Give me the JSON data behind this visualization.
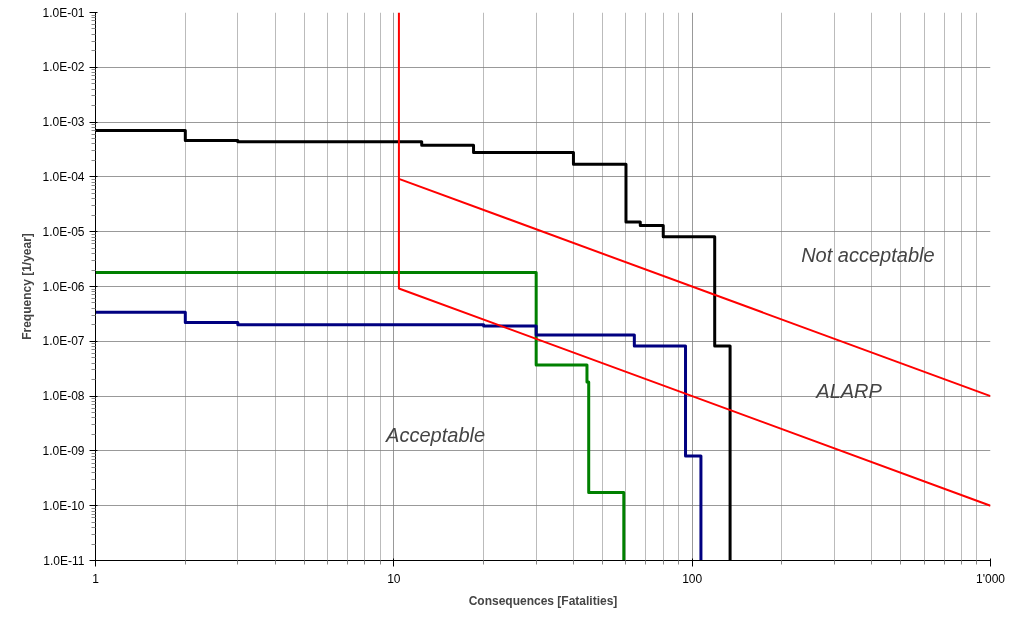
{
  "chart_data": {
    "type": "step",
    "xlabel": "Consequences [Fatalities]",
    "ylabel": "Frequency [1/year]",
    "log": "xy",
    "grid": true,
    "xlim": [
      1,
      1000
    ],
    "ylim": [
      1e-11,
      0.1
    ],
    "xticks": [
      1,
      10,
      100,
      {
        "value": 1000,
        "label": "1'000"
      }
    ],
    "yticks": [
      {
        "value": 1e-11,
        "label": "1.0E-11"
      },
      {
        "value": 1e-10,
        "label": "1.0E-10"
      },
      {
        "value": 1e-09,
        "label": "1.0E-09"
      },
      {
        "value": 1e-08,
        "label": "1.0E-08"
      },
      {
        "value": 1e-07,
        "label": "1.0E-07"
      },
      {
        "value": 1e-06,
        "label": "1.0E-06"
      },
      {
        "value": 1e-05,
        "label": "1.0E-05"
      },
      {
        "value": 0.0001,
        "label": "1.0E-04"
      },
      {
        "value": 0.001,
        "label": "1.0E-03"
      },
      {
        "value": 0.01,
        "label": "1.0E-02"
      },
      {
        "value": 0.1,
        "label": "1.0E-01"
      }
    ],
    "series": [
      {
        "color": "#000000",
        "x": [
          1,
          2,
          3,
          12.4,
          18.5,
          40,
          60,
          67,
          80,
          119,
          134
        ],
        "values": [
          0.0007,
          0.00046,
          0.00044,
          0.00038,
          0.00028,
          0.00017,
          1.5e-05,
          1.3e-05,
          8.1e-06,
          8.2e-08,
          1e-11
        ]
      },
      {
        "color": "#008000",
        "x": [
          1,
          30,
          44.4,
          45,
          59
        ],
        "values": [
          1.8e-06,
          3.7e-08,
          1.8e-08,
          1.75e-10,
          1e-11
        ]
      },
      {
        "color": "#000080",
        "x": [
          1,
          2,
          3,
          20,
          30,
          64,
          95,
          107
        ],
        "values": [
          3.4e-07,
          2.2e-07,
          2e-07,
          1.9e-07,
          1.3e-07,
          8.2e-08,
          8.1e-10,
          1e-11
        ]
      },
      {
        "type": "line",
        "color": "#ff0000",
        "x": [
          10.4,
          10.4,
          1000
        ],
        "values": [
          0.1,
          9.2e-07,
          1e-10
        ]
      },
      {
        "type": "line",
        "color": "#ff0000",
        "x": [
          10.4,
          1000
        ],
        "values": [
          9.2e-05,
          1e-08
        ]
      }
    ],
    "annotations": [
      "Not acceptable",
      "ALARP",
      "Acceptable"
    ]
  }
}
